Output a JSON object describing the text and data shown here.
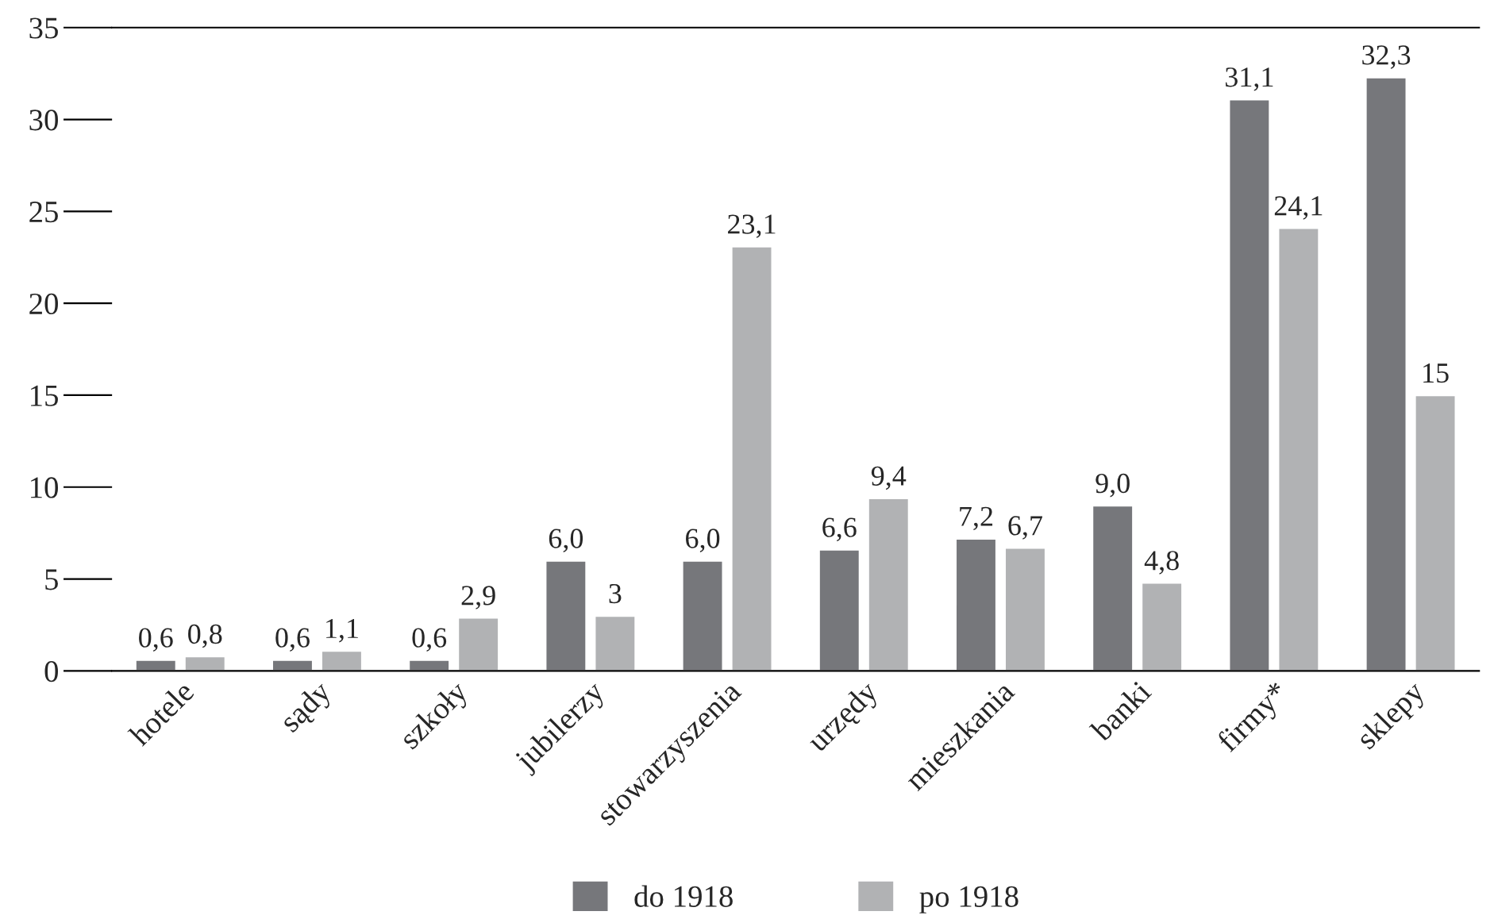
{
  "chart_data": {
    "type": "bar",
    "categories": [
      "hotele",
      "sądy",
      "szkoły",
      "jubilerzy",
      "stowarzyszenia",
      "urzędy",
      "mieszkania",
      "banki",
      "firmy*",
      "sklepy"
    ],
    "series": [
      {
        "name": "do 1918",
        "color": "#76777b",
        "values": [
          0.6,
          0.6,
          0.6,
          6.0,
          6.0,
          6.6,
          7.2,
          9.0,
          31.1,
          32.3
        ],
        "value_labels": [
          "0,6",
          "0,6",
          "0,6",
          "6,0",
          "6,0",
          "6,6",
          "7,2",
          "9,0",
          "31,1",
          "32,3"
        ]
      },
      {
        "name": "po 1918",
        "color": "#b1b2b4",
        "values": [
          0.8,
          1.1,
          2.9,
          3,
          23.1,
          9.4,
          6.7,
          4.8,
          24.1,
          15
        ],
        "value_labels": [
          "0,8",
          "1,1",
          "2,9",
          "3",
          "23,1",
          "9,4",
          "6,7",
          "4,8",
          "24,1",
          "15"
        ]
      }
    ],
    "ylim": [
      0,
      35
    ],
    "yticks": [
      0,
      5,
      10,
      15,
      20,
      25,
      30,
      35
    ],
    "grid": false,
    "legend": "bottom"
  }
}
